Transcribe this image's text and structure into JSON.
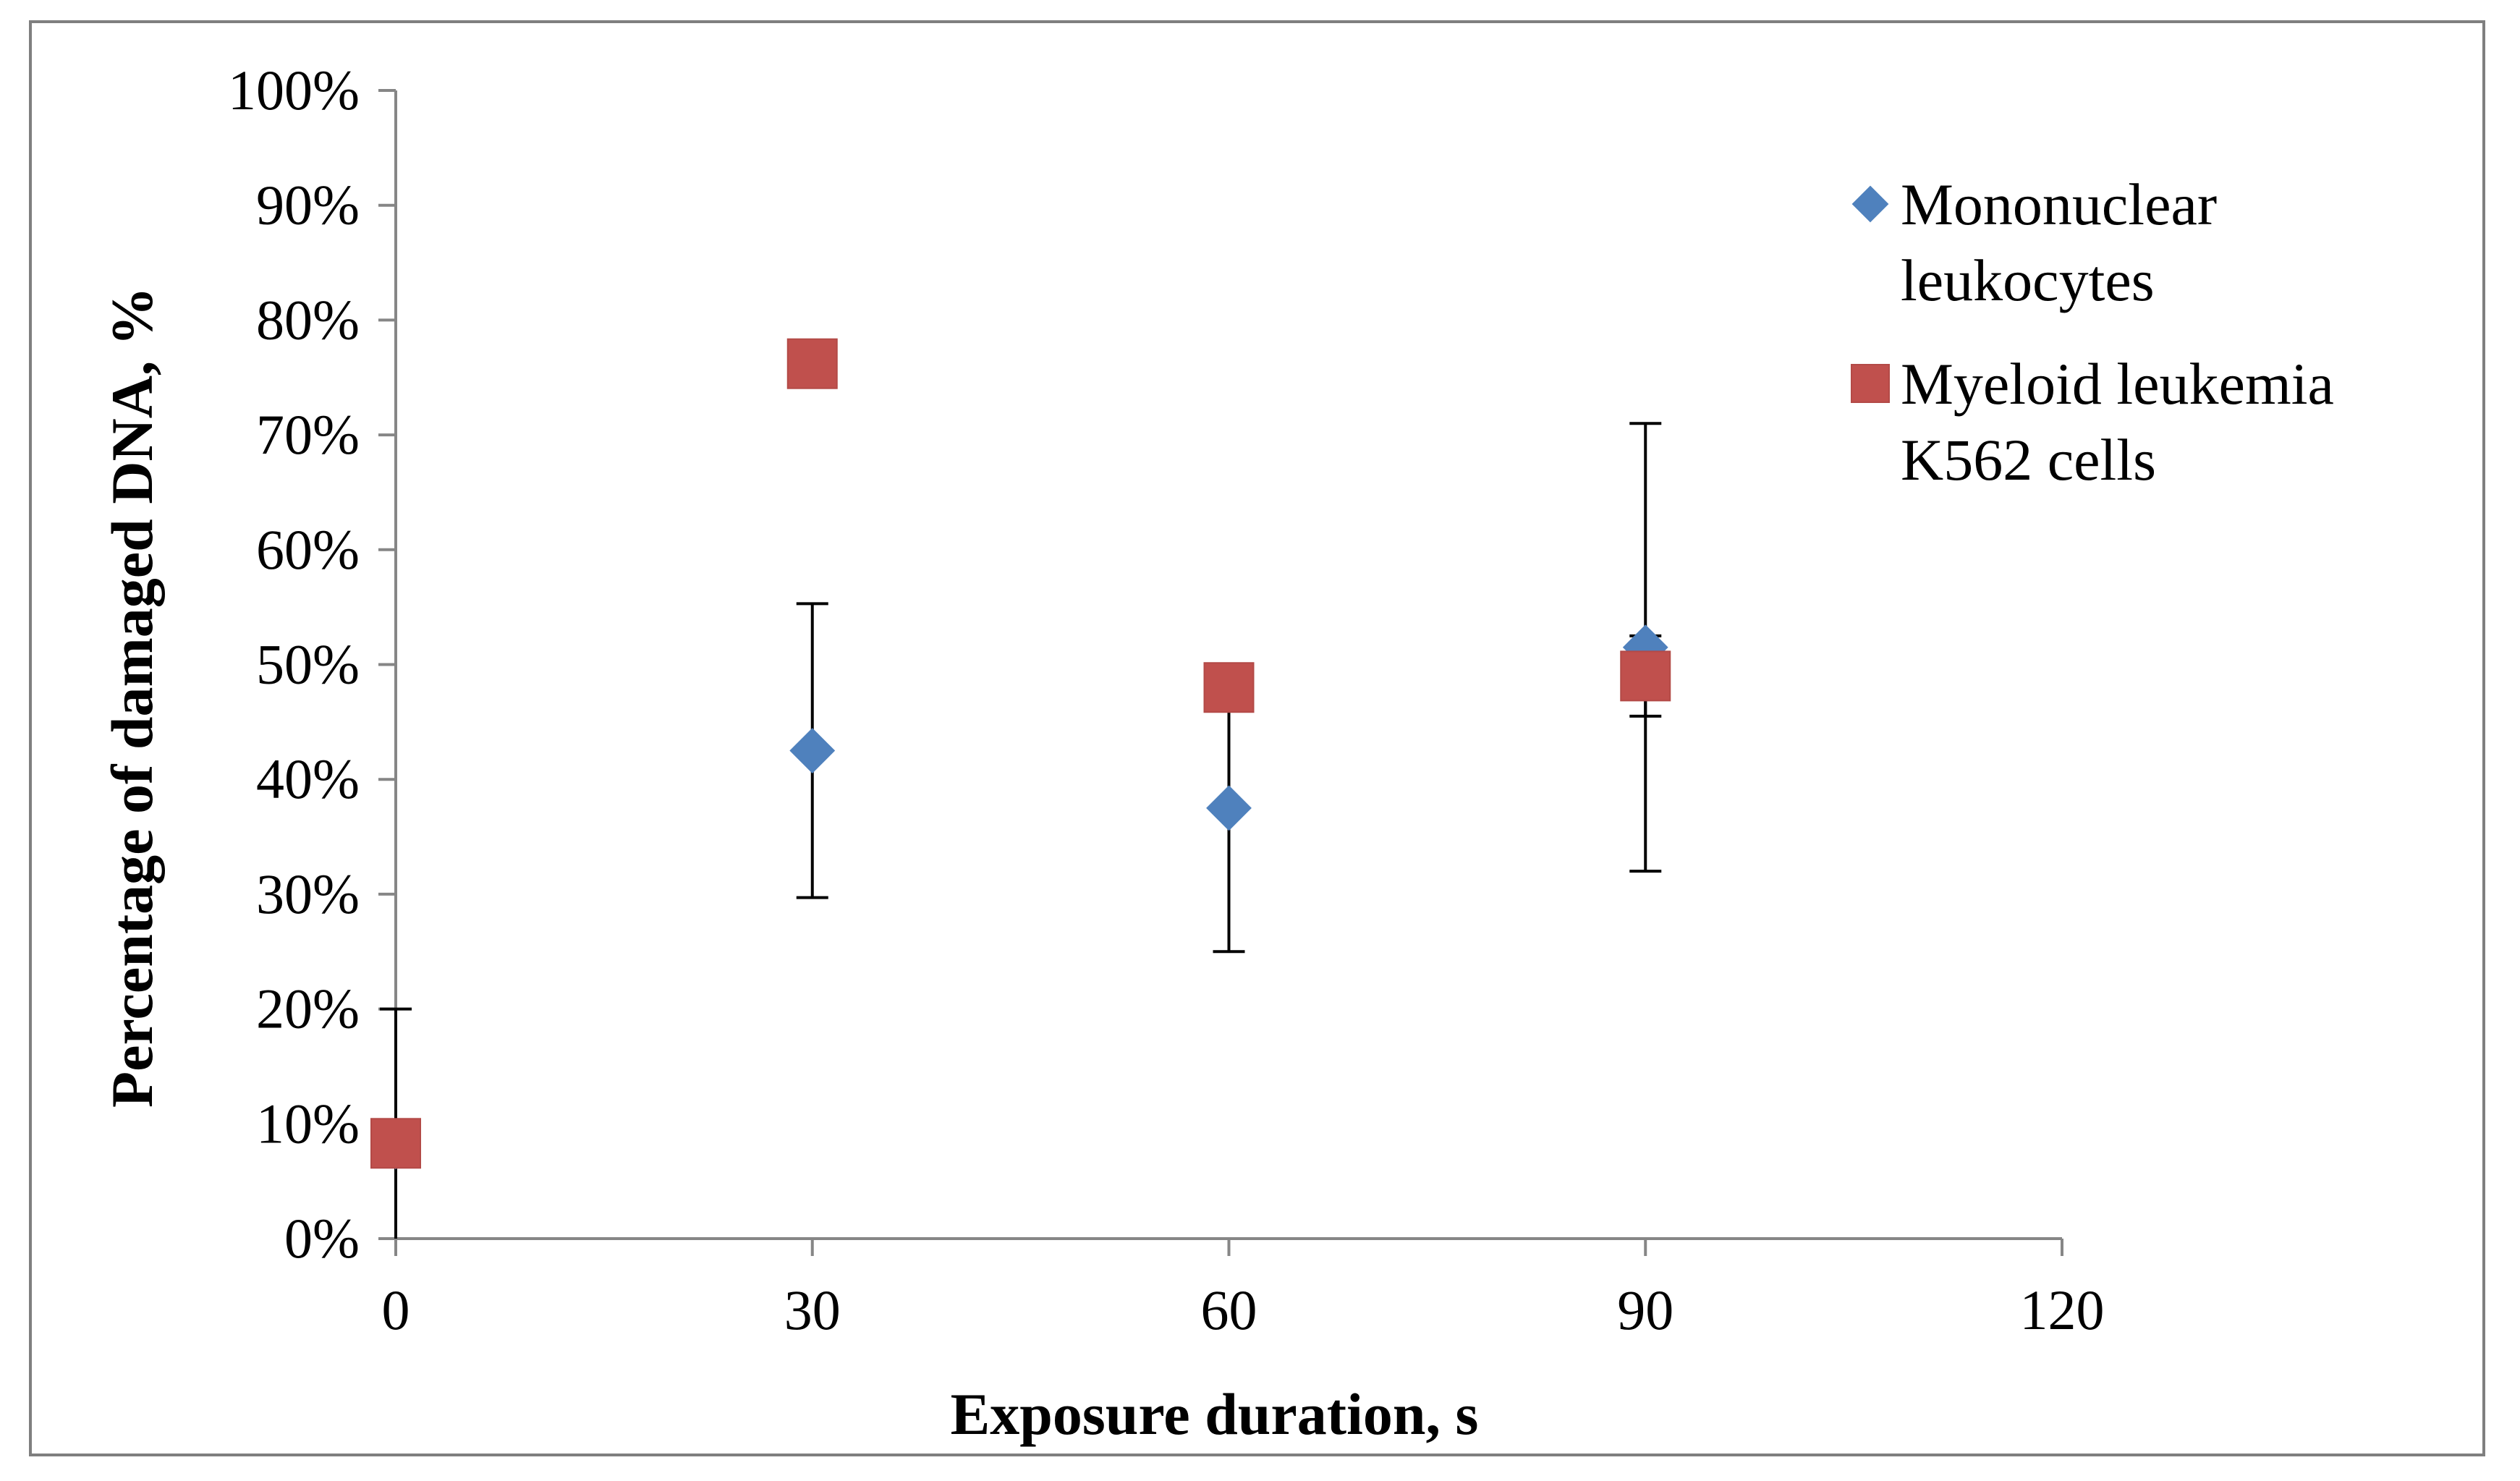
{
  "chart_data": {
    "type": "scatter",
    "title": "",
    "xlabel": "Exposure duration, s",
    "ylabel": "Percentage of damaged DNA, %",
    "xlim": [
      0,
      120
    ],
    "ylim": [
      0,
      100
    ],
    "x_ticks": [
      0,
      30,
      60,
      90,
      120
    ],
    "x_tick_labels": [
      "0",
      "30",
      "60",
      "90",
      "120"
    ],
    "y_ticks": [
      0,
      10,
      20,
      30,
      40,
      50,
      60,
      70,
      80,
      90,
      100
    ],
    "y_tick_labels": [
      "0%",
      "10%",
      "20%",
      "30%",
      "40%",
      "50%",
      "60%",
      "70%",
      "80%",
      "90%",
      "100%"
    ],
    "legend_position": "top-right",
    "series": [
      {
        "name": "Mononuclear leukocytes",
        "legend_lines": [
          "Mononuclear",
          "leukocytes"
        ],
        "marker": "diamond",
        "color": "#4F81BD",
        "x": [
          0,
          30,
          60,
          90
        ],
        "y": [
          8,
          42.5,
          37.5,
          51.5
        ],
        "error": [
          12,
          12.8,
          12.5,
          19.5
        ]
      },
      {
        "name": "Myeloid leukemia K562 cells",
        "legend_lines": [
          "Myeloid leukemia",
          "K562  cells"
        ],
        "marker": "square",
        "color": "#C0504D",
        "x": [
          0,
          30,
          60,
          90
        ],
        "y": [
          8.3,
          76.2,
          48,
          49
        ],
        "error": [
          0,
          2,
          0,
          3.5
        ]
      }
    ]
  }
}
